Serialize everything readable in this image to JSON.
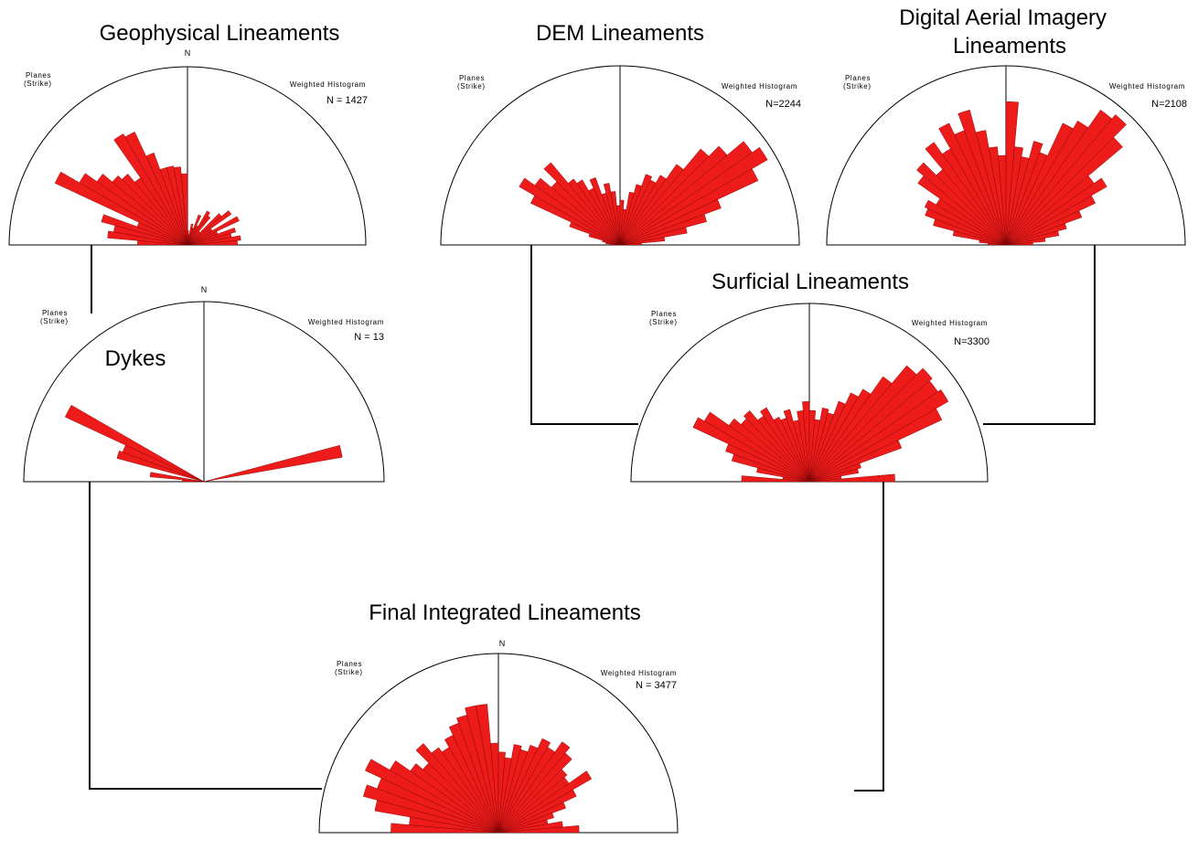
{
  "colors": {
    "petal": "#ee1b1b",
    "petal_edge": "#7a0000",
    "line": "#000000"
  },
  "chart_data": [
    {
      "type": "rose",
      "id": "geophysical",
      "title": "Geophysical Lineaments",
      "north_label": "N",
      "planes_label": [
        "Planes",
        "(Strike)"
      ],
      "hist_label": "Weighted Histogram",
      "n_label": "N = 1427",
      "bin_width_deg": 5,
      "theta_range": [
        -90,
        90
      ],
      "bins": [
        {
          "azimuth": -87.5,
          "value": 0.28
        },
        {
          "azimuth": -82.5,
          "value": 0.45
        },
        {
          "azimuth": -77.5,
          "value": 0.42
        },
        {
          "azimuth": -72.5,
          "value": 0.5
        },
        {
          "azimuth": -67.5,
          "value": 0.3
        },
        {
          "azimuth": -62.5,
          "value": 0.82
        },
        {
          "azimuth": -57.5,
          "value": 0.7
        },
        {
          "azimuth": -52.5,
          "value": 0.62
        },
        {
          "azimuth": -47.5,
          "value": 0.55
        },
        {
          "azimuth": -42.5,
          "value": 0.52
        },
        {
          "azimuth": -37.5,
          "value": 0.46
        },
        {
          "azimuth": -32.5,
          "value": 0.72
        },
        {
          "azimuth": -27.5,
          "value": 0.7
        },
        {
          "azimuth": -22.5,
          "value": 0.55
        },
        {
          "azimuth": -17.5,
          "value": 0.45
        },
        {
          "azimuth": -12.5,
          "value": 0.45
        },
        {
          "azimuth": -7.5,
          "value": 0.44
        },
        {
          "azimuth": -2.5,
          "value": 0.4
        },
        {
          "azimuth": 2.5,
          "value": 0.08
        },
        {
          "azimuth": 7.5,
          "value": 0.06
        },
        {
          "azimuth": 12.5,
          "value": 0.12
        },
        {
          "azimuth": 17.5,
          "value": 0.1
        },
        {
          "azimuth": 22.5,
          "value": 0.18
        },
        {
          "azimuth": 27.5,
          "value": 0.12
        },
        {
          "azimuth": 32.5,
          "value": 0.22
        },
        {
          "azimuth": 37.5,
          "value": 0.2
        },
        {
          "azimuth": 42.5,
          "value": 0.1
        },
        {
          "azimuth": 47.5,
          "value": 0.25
        },
        {
          "azimuth": 52.5,
          "value": 0.3
        },
        {
          "azimuth": 57.5,
          "value": 0.16
        },
        {
          "azimuth": 62.5,
          "value": 0.32
        },
        {
          "azimuth": 67.5,
          "value": 0.18
        },
        {
          "azimuth": 72.5,
          "value": 0.28
        },
        {
          "azimuth": 77.5,
          "value": 0.25
        },
        {
          "azimuth": 82.5,
          "value": 0.3
        },
        {
          "azimuth": 87.5,
          "value": 0.28
        }
      ]
    },
    {
      "type": "rose",
      "id": "dem",
      "title": "DEM Lineaments",
      "north_label": "",
      "planes_label": [
        "Planes",
        "(Strike)"
      ],
      "hist_label": "Weighted Histogram",
      "n_label": "N=2244",
      "bin_width_deg": 5,
      "theta_range": [
        -90,
        90
      ],
      "bins": [
        {
          "azimuth": -87.5,
          "value": 0.05
        },
        {
          "azimuth": -82.5,
          "value": 0.08
        },
        {
          "azimuth": -77.5,
          "value": 0.1
        },
        {
          "azimuth": -72.5,
          "value": 0.18
        },
        {
          "azimuth": -67.5,
          "value": 0.3
        },
        {
          "azimuth": -62.5,
          "value": 0.55
        },
        {
          "azimuth": -57.5,
          "value": 0.65
        },
        {
          "azimuth": -52.5,
          "value": 0.58
        },
        {
          "azimuth": -47.5,
          "value": 0.5
        },
        {
          "azimuth": -42.5,
          "value": 0.6
        },
        {
          "azimuth": -37.5,
          "value": 0.45
        },
        {
          "azimuth": -32.5,
          "value": 0.42
        },
        {
          "azimuth": -27.5,
          "value": 0.35
        },
        {
          "azimuth": -22.5,
          "value": 0.4
        },
        {
          "azimuth": -17.5,
          "value": 0.3
        },
        {
          "azimuth": -12.5,
          "value": 0.35
        },
        {
          "azimuth": -7.5,
          "value": 0.3
        },
        {
          "azimuth": -2.5,
          "value": 0.22
        },
        {
          "azimuth": 2.5,
          "value": 0.25
        },
        {
          "azimuth": 7.5,
          "value": 0.2
        },
        {
          "azimuth": 12.5,
          "value": 0.3
        },
        {
          "azimuth": 17.5,
          "value": 0.35
        },
        {
          "azimuth": 22.5,
          "value": 0.42
        },
        {
          "azimuth": 27.5,
          "value": 0.4
        },
        {
          "azimuth": 32.5,
          "value": 0.45
        },
        {
          "azimuth": 37.5,
          "value": 0.55
        },
        {
          "azimuth": 42.5,
          "value": 0.7
        },
        {
          "azimuth": 47.5,
          "value": 0.78
        },
        {
          "azimuth": 52.5,
          "value": 0.9
        },
        {
          "azimuth": 57.5,
          "value": 0.95
        },
        {
          "azimuth": 62.5,
          "value": 0.85
        },
        {
          "azimuth": 67.5,
          "value": 0.6
        },
        {
          "azimuth": 72.5,
          "value": 0.5
        },
        {
          "azimuth": 77.5,
          "value": 0.38
        },
        {
          "azimuth": 82.5,
          "value": 0.25
        },
        {
          "azimuth": 87.5,
          "value": 0.12
        }
      ]
    },
    {
      "type": "rose",
      "id": "aerial",
      "title": [
        "Digital Aerial Imagery",
        "Lineaments"
      ],
      "north_label": "",
      "planes_label": [
        "Planes",
        "(Strike)"
      ],
      "hist_label": "Weighted Histogram",
      "n_label": "N=2108",
      "bin_width_deg": 5,
      "theta_range": [
        -90,
        90
      ],
      "bins": [
        {
          "azimuth": -87.5,
          "value": 0.1
        },
        {
          "azimuth": -82.5,
          "value": 0.15
        },
        {
          "azimuth": -77.5,
          "value": 0.3
        },
        {
          "azimuth": -72.5,
          "value": 0.42
        },
        {
          "azimuth": -67.5,
          "value": 0.48
        },
        {
          "azimuth": -62.5,
          "value": 0.5
        },
        {
          "azimuth": -57.5,
          "value": 0.45
        },
        {
          "azimuth": -52.5,
          "value": 0.6
        },
        {
          "azimuth": -47.5,
          "value": 0.65
        },
        {
          "azimuth": -42.5,
          "value": 0.55
        },
        {
          "azimuth": -37.5,
          "value": 0.7
        },
        {
          "azimuth": -32.5,
          "value": 0.62
        },
        {
          "azimuth": -27.5,
          "value": 0.75
        },
        {
          "azimuth": -22.5,
          "value": 0.68
        },
        {
          "azimuth": -17.5,
          "value": 0.78
        },
        {
          "azimuth": -12.5,
          "value": 0.65
        },
        {
          "azimuth": -7.5,
          "value": 0.55
        },
        {
          "azimuth": -2.5,
          "value": 0.5
        },
        {
          "azimuth": 2.5,
          "value": 0.8
        },
        {
          "azimuth": 7.5,
          "value": 0.55
        },
        {
          "azimuth": 12.5,
          "value": 0.5
        },
        {
          "azimuth": 17.5,
          "value": 0.6
        },
        {
          "azimuth": 22.5,
          "value": 0.55
        },
        {
          "azimuth": 27.5,
          "value": 0.75
        },
        {
          "azimuth": 32.5,
          "value": 0.8
        },
        {
          "azimuth": 37.5,
          "value": 0.92
        },
        {
          "azimuth": 42.5,
          "value": 0.95
        },
        {
          "azimuth": 47.5,
          "value": 0.85
        },
        {
          "azimuth": 52.5,
          "value": 0.6
        },
        {
          "azimuth": 57.5,
          "value": 0.65
        },
        {
          "azimuth": 62.5,
          "value": 0.55
        },
        {
          "azimuth": 67.5,
          "value": 0.45
        },
        {
          "azimuth": 72.5,
          "value": 0.35
        },
        {
          "azimuth": 77.5,
          "value": 0.3
        },
        {
          "azimuth": 82.5,
          "value": 0.22
        },
        {
          "azimuth": 87.5,
          "value": 0.15
        }
      ]
    },
    {
      "type": "rose",
      "id": "dykes",
      "title": "Dykes",
      "north_label": "N",
      "planes_label": [
        "Planes",
        "(Strike)"
      ],
      "hist_label": "Weighted Histogram",
      "n_label": "N = 13",
      "bin_width_deg": 5,
      "theta_range": [
        -90,
        90
      ],
      "bins": [
        {
          "azimuth": -87.5,
          "value": 0.12
        },
        {
          "azimuth": -82.5,
          "value": 0.3
        },
        {
          "azimuth": -72.5,
          "value": 0.5
        },
        {
          "azimuth": -67.5,
          "value": 0.48
        },
        {
          "azimuth": -62.5,
          "value": 0.85
        },
        {
          "azimuth": 77.5,
          "value": 0.78
        }
      ]
    },
    {
      "type": "rose",
      "id": "surficial",
      "title": "Surficial Lineaments",
      "north_label": "",
      "planes_label": [
        "Planes",
        "(Strike)"
      ],
      "hist_label": "Weighted Histogram",
      "n_label": "N=3300",
      "bin_width_deg": 5,
      "theta_range": [
        -90,
        90
      ],
      "bins": [
        {
          "azimuth": -87.5,
          "value": 0.38
        },
        {
          "azimuth": -82.5,
          "value": 0.15
        },
        {
          "azimuth": -77.5,
          "value": 0.3
        },
        {
          "azimuth": -72.5,
          "value": 0.45
        },
        {
          "azimuth": -67.5,
          "value": 0.5
        },
        {
          "azimuth": -62.5,
          "value": 0.72
        },
        {
          "azimuth": -57.5,
          "value": 0.68
        },
        {
          "azimuth": -52.5,
          "value": 0.55
        },
        {
          "azimuth": -47.5,
          "value": 0.5
        },
        {
          "azimuth": -42.5,
          "value": 0.52
        },
        {
          "azimuth": -37.5,
          "value": 0.45
        },
        {
          "azimuth": -32.5,
          "value": 0.48
        },
        {
          "azimuth": -27.5,
          "value": 0.4
        },
        {
          "azimuth": -22.5,
          "value": 0.38
        },
        {
          "azimuth": -17.5,
          "value": 0.42
        },
        {
          "azimuth": -12.5,
          "value": 0.35
        },
        {
          "azimuth": -7.5,
          "value": 0.4
        },
        {
          "azimuth": -2.5,
          "value": 0.45
        },
        {
          "azimuth": 2.5,
          "value": 0.4
        },
        {
          "azimuth": 7.5,
          "value": 0.35
        },
        {
          "azimuth": 12.5,
          "value": 0.42
        },
        {
          "azimuth": 17.5,
          "value": 0.4
        },
        {
          "azimuth": 22.5,
          "value": 0.48
        },
        {
          "azimuth": 27.5,
          "value": 0.55
        },
        {
          "azimuth": 32.5,
          "value": 0.6
        },
        {
          "azimuth": 37.5,
          "value": 0.72
        },
        {
          "azimuth": 42.5,
          "value": 0.85
        },
        {
          "azimuth": 47.5,
          "value": 0.9
        },
        {
          "azimuth": 52.5,
          "value": 0.88
        },
        {
          "azimuth": 57.5,
          "value": 0.9
        },
        {
          "azimuth": 62.5,
          "value": 0.82
        },
        {
          "azimuth": 67.5,
          "value": 0.55
        },
        {
          "azimuth": 72.5,
          "value": 0.3
        },
        {
          "azimuth": 77.5,
          "value": 0.28
        },
        {
          "azimuth": 82.5,
          "value": 0.18
        },
        {
          "azimuth": 87.5,
          "value": 0.48
        }
      ]
    },
    {
      "type": "rose",
      "id": "final",
      "title": "Final Integrated Lineaments",
      "north_label": "N",
      "planes_label": [
        "Planes",
        "(Strike)"
      ],
      "hist_label": "Weighted Histogram",
      "n_label": "N = 3477",
      "bin_width_deg": 5,
      "theta_range": [
        -90,
        90
      ],
      "bins": [
        {
          "azimuth": -87.5,
          "value": 0.6
        },
        {
          "azimuth": -82.5,
          "value": 0.5
        },
        {
          "azimuth": -77.5,
          "value": 0.7
        },
        {
          "azimuth": -72.5,
          "value": 0.78
        },
        {
          "azimuth": -67.5,
          "value": 0.72
        },
        {
          "azimuth": -62.5,
          "value": 0.82
        },
        {
          "azimuth": -57.5,
          "value": 0.7
        },
        {
          "azimuth": -52.5,
          "value": 0.6
        },
        {
          "azimuth": -47.5,
          "value": 0.55
        },
        {
          "azimuth": -42.5,
          "value": 0.65
        },
        {
          "azimuth": -37.5,
          "value": 0.58
        },
        {
          "azimuth": -32.5,
          "value": 0.55
        },
        {
          "azimuth": -27.5,
          "value": 0.6
        },
        {
          "azimuth": -22.5,
          "value": 0.65
        },
        {
          "azimuth": -17.5,
          "value": 0.68
        },
        {
          "azimuth": -12.5,
          "value": 0.72
        },
        {
          "azimuth": -7.5,
          "value": 0.72
        },
        {
          "azimuth": -2.5,
          "value": 0.5
        },
        {
          "azimuth": 2.5,
          "value": 0.45
        },
        {
          "azimuth": 7.5,
          "value": 0.42
        },
        {
          "azimuth": 12.5,
          "value": 0.5
        },
        {
          "azimuth": 17.5,
          "value": 0.48
        },
        {
          "azimuth": 22.5,
          "value": 0.52
        },
        {
          "azimuth": 27.5,
          "value": 0.58
        },
        {
          "azimuth": 32.5,
          "value": 0.55
        },
        {
          "azimuth": 37.5,
          "value": 0.62
        },
        {
          "azimuth": 42.5,
          "value": 0.58
        },
        {
          "azimuth": 47.5,
          "value": 0.5
        },
        {
          "azimuth": 52.5,
          "value": 0.48
        },
        {
          "azimuth": 57.5,
          "value": 0.6
        },
        {
          "azimuth": 62.5,
          "value": 0.48
        },
        {
          "azimuth": 67.5,
          "value": 0.4
        },
        {
          "azimuth": 72.5,
          "value": 0.32
        },
        {
          "azimuth": 77.5,
          "value": 0.28
        },
        {
          "azimuth": 82.5,
          "value": 0.36
        },
        {
          "azimuth": 87.5,
          "value": 0.45
        }
      ]
    }
  ]
}
